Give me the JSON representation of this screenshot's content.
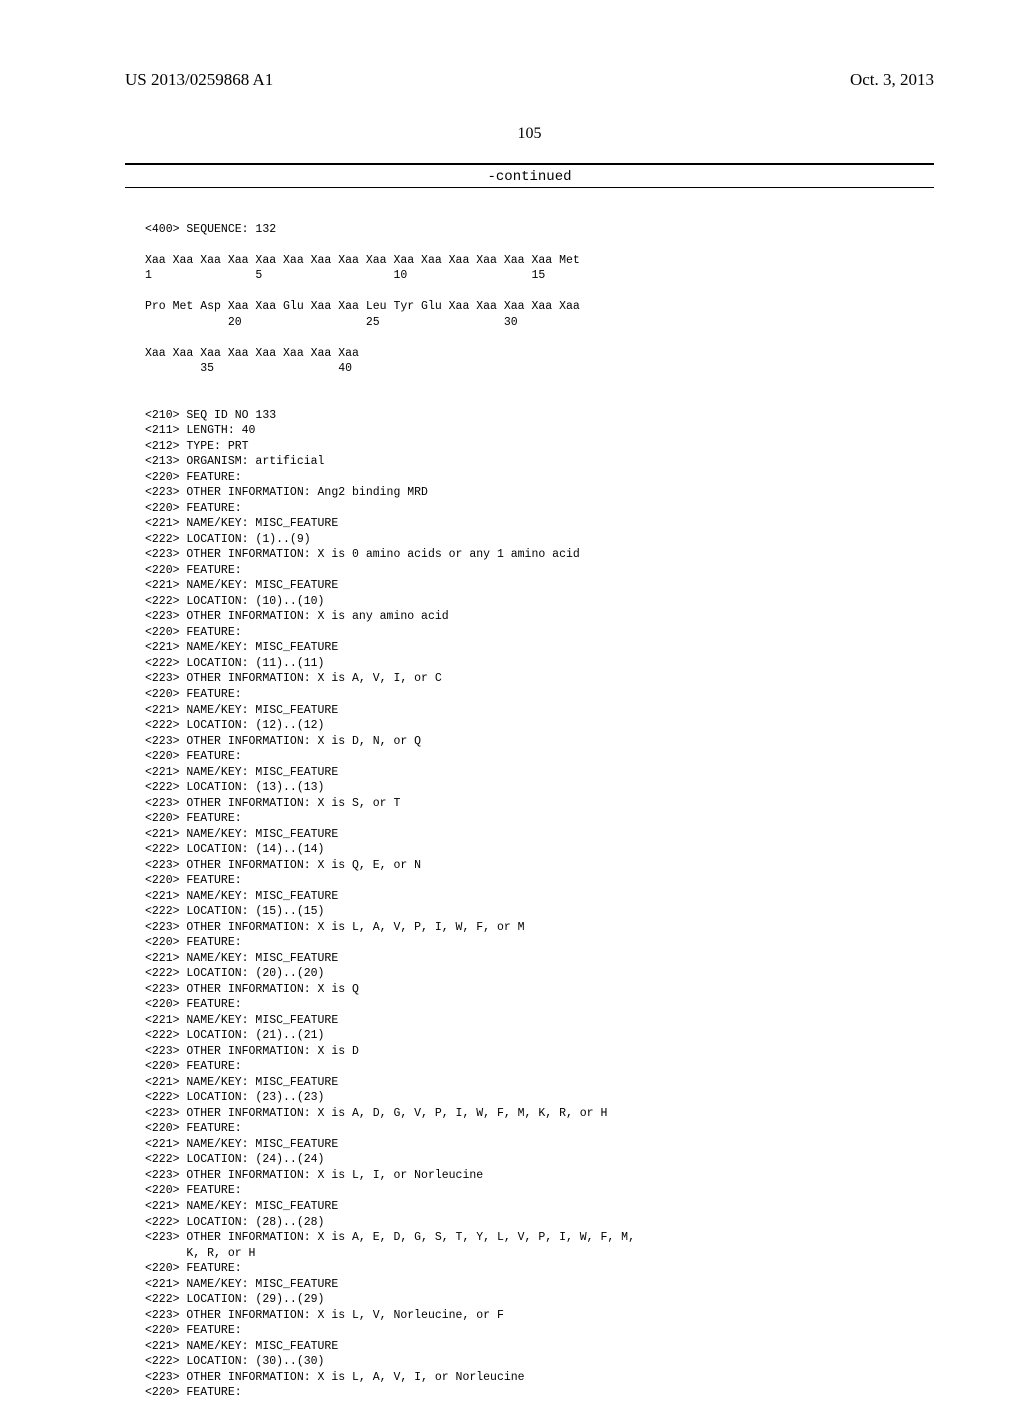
{
  "header": {
    "left": "US 2013/0259868 A1",
    "right": "Oct. 3, 2013"
  },
  "page_number": "105",
  "continued_label": "-continued",
  "seq": {
    "l1": "<400> SEQUENCE: 132",
    "l2": "Xaa Xaa Xaa Xaa Xaa Xaa Xaa Xaa Xaa Xaa Xaa Xaa Xaa Xaa Xaa Met",
    "l3": "1               5                   10                  15",
    "l4": "Pro Met Asp Xaa Xaa Glu Xaa Xaa Leu Tyr Glu Xaa Xaa Xaa Xaa Xaa",
    "l5": "            20                  25                  30",
    "l6": "Xaa Xaa Xaa Xaa Xaa Xaa Xaa Xaa",
    "l7": "        35                  40",
    "l8": "<210> SEQ ID NO 133",
    "l9": "<211> LENGTH: 40",
    "l10": "<212> TYPE: PRT",
    "l11": "<213> ORGANISM: artificial",
    "l12": "<220> FEATURE:",
    "l13": "<223> OTHER INFORMATION: Ang2 binding MRD",
    "l14": "<220> FEATURE:",
    "l15": "<221> NAME/KEY: MISC_FEATURE",
    "l16": "<222> LOCATION: (1)..(9)",
    "l17": "<223> OTHER INFORMATION: X is 0 amino acids or any 1 amino acid",
    "l18": "<220> FEATURE:",
    "l19": "<221> NAME/KEY: MISC_FEATURE",
    "l20": "<222> LOCATION: (10)..(10)",
    "l21": "<223> OTHER INFORMATION: X is any amino acid",
    "l22": "<220> FEATURE:",
    "l23": "<221> NAME/KEY: MISC_FEATURE",
    "l24": "<222> LOCATION: (11)..(11)",
    "l25": "<223> OTHER INFORMATION: X is A, V, I, or C",
    "l26": "<220> FEATURE:",
    "l27": "<221> NAME/KEY: MISC_FEATURE",
    "l28": "<222> LOCATION: (12)..(12)",
    "l29": "<223> OTHER INFORMATION: X is D, N, or Q",
    "l30": "<220> FEATURE:",
    "l31": "<221> NAME/KEY: MISC_FEATURE",
    "l32": "<222> LOCATION: (13)..(13)",
    "l33": "<223> OTHER INFORMATION: X is S, or T",
    "l34": "<220> FEATURE:",
    "l35": "<221> NAME/KEY: MISC_FEATURE",
    "l36": "<222> LOCATION: (14)..(14)",
    "l37": "<223> OTHER INFORMATION: X is Q, E, or N",
    "l38": "<220> FEATURE:",
    "l39": "<221> NAME/KEY: MISC_FEATURE",
    "l40": "<222> LOCATION: (15)..(15)",
    "l41": "<223> OTHER INFORMATION: X is L, A, V, P, I, W, F, or M",
    "l42": "<220> FEATURE:",
    "l43": "<221> NAME/KEY: MISC_FEATURE",
    "l44": "<222> LOCATION: (20)..(20)",
    "l45": "<223> OTHER INFORMATION: X is Q",
    "l46": "<220> FEATURE:",
    "l47": "<221> NAME/KEY: MISC_FEATURE",
    "l48": "<222> LOCATION: (21)..(21)",
    "l49": "<223> OTHER INFORMATION: X is D",
    "l50": "<220> FEATURE:",
    "l51": "<221> NAME/KEY: MISC_FEATURE",
    "l52": "<222> LOCATION: (23)..(23)",
    "l53": "<223> OTHER INFORMATION: X is A, D, G, V, P, I, W, F, M, K, R, or H",
    "l54": "<220> FEATURE:",
    "l55": "<221> NAME/KEY: MISC_FEATURE",
    "l56": "<222> LOCATION: (24)..(24)",
    "l57": "<223> OTHER INFORMATION: X is L, I, or Norleucine",
    "l58": "<220> FEATURE:",
    "l59": "<221> NAME/KEY: MISC_FEATURE",
    "l60": "<222> LOCATION: (28)..(28)",
    "l61": "<223> OTHER INFORMATION: X is A, E, D, G, S, T, Y, L, V, P, I, W, F, M,",
    "l62": "      K, R, or H",
    "l63": "<220> FEATURE:",
    "l64": "<221> NAME/KEY: MISC_FEATURE",
    "l65": "<222> LOCATION: (29)..(29)",
    "l66": "<223> OTHER INFORMATION: X is L, V, Norleucine, or F",
    "l67": "<220> FEATURE:",
    "l68": "<221> NAME/KEY: MISC_FEATURE",
    "l69": "<222> LOCATION: (30)..(30)",
    "l70": "<223> OTHER INFORMATION: X is L, A, V, I, or Norleucine",
    "l71": "<220> FEATURE:"
  }
}
